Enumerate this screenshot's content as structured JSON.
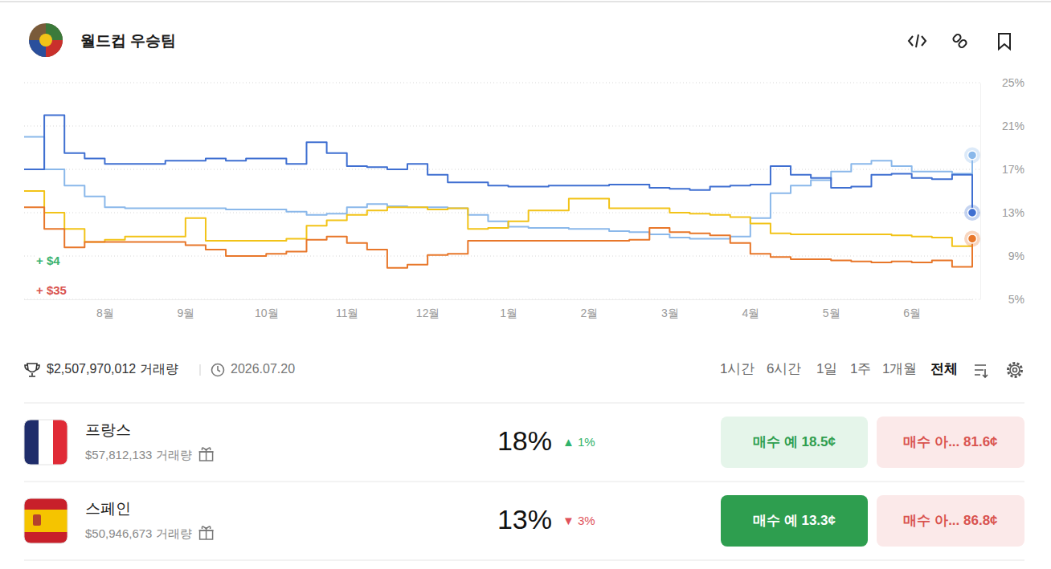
{
  "chart_data": {
    "type": "line",
    "title": "월드컵 우승팀",
    "line_style": "step",
    "grid": true,
    "categories": [
      null,
      null,
      null,
      null,
      "8월",
      null,
      null,
      null,
      "9월",
      null,
      null,
      null,
      "10월",
      null,
      null,
      null,
      "11월",
      null,
      null,
      null,
      "12월",
      null,
      null,
      null,
      "1월",
      null,
      null,
      null,
      "2월",
      null,
      null,
      null,
      "3월",
      null,
      null,
      null,
      "4월",
      null,
      null,
      null,
      "5월",
      null,
      null,
      null,
      "6월",
      null,
      null,
      null
    ],
    "series": [
      {
        "name": "프랑스",
        "color": "#8ab8ea",
        "marker": "dot",
        "values": [
          20,
          17,
          15.5,
          14.5,
          13.5,
          13.4,
          13.4,
          13.4,
          13.4,
          13.4,
          13.3,
          13.3,
          13.3,
          13.1,
          12.8,
          12.9,
          13.5,
          13.8,
          13.6,
          13.5,
          13.5,
          13.4,
          12.8,
          12.2,
          11.7,
          11.6,
          11.6,
          11.5,
          11.5,
          11.3,
          11.2,
          11,
          10.7,
          10.6,
          10.6,
          10.8,
          12.5,
          14.8,
          15.5,
          16,
          16.8,
          17.5,
          17.8,
          17.3,
          16.8,
          16.8,
          16.6,
          18.3
        ]
      },
      {
        "name": "스페인",
        "color": "#3f6fd1",
        "marker": "dot",
        "values": [
          17,
          22,
          18.5,
          18,
          17.5,
          17.5,
          17.5,
          17.8,
          17.8,
          18,
          17.8,
          18,
          18,
          17.5,
          19.5,
          18.5,
          17.3,
          17.2,
          17,
          17.5,
          16.5,
          15.8,
          15.8,
          15.5,
          15.4,
          15.4,
          15.5,
          15.5,
          15.5,
          15.6,
          15.6,
          15.3,
          15.2,
          15.1,
          15.4,
          15.5,
          15.6,
          17.3,
          16.5,
          16.2,
          15.3,
          15.4,
          16.5,
          16.6,
          16.2,
          16.1,
          16.5,
          13
        ]
      },
      {
        "color": "#f2c318",
        "marker": "none",
        "values": [
          15,
          13,
          11.5,
          10.3,
          10.5,
          10.8,
          10.8,
          10.8,
          12.5,
          10.4,
          10.4,
          10.4,
          10.4,
          10.6,
          11.8,
          12.3,
          12.8,
          13.2,
          13.5,
          13.5,
          13.3,
          13.4,
          11.5,
          11.6,
          12.2,
          13.2,
          13.2,
          14.3,
          14.3,
          13.4,
          13.4,
          13.4,
          13,
          12.9,
          12.8,
          12.6,
          12,
          11.1,
          11,
          11,
          11,
          11,
          11,
          10.9,
          10.8,
          10.7,
          9.9,
          9.6
        ]
      },
      {
        "color": "#e8772a",
        "marker": "dot",
        "values": [
          13.5,
          11.5,
          9.8,
          10.3,
          10.3,
          10.3,
          10.3,
          10.3,
          10,
          9.6,
          9,
          9,
          9.2,
          9.4,
          10.5,
          10.8,
          10.2,
          9.6,
          7.9,
          8.2,
          9.1,
          9.2,
          10.4,
          10.4,
          10.4,
          10.4,
          10.4,
          10.4,
          10.4,
          10.4,
          10.5,
          11.6,
          11.2,
          11.1,
          10.9,
          10.2,
          9.2,
          8.9,
          8.7,
          8.7,
          8.6,
          8.5,
          8.4,
          8.5,
          8.4,
          8.6,
          8,
          10.6
        ]
      }
    ],
    "ylim": [
      5,
      25
    ],
    "yticks": [
      {
        "value": 5,
        "label": "5%"
      },
      {
        "value": 9,
        "label": "9%"
      },
      {
        "value": 13,
        "label": "13%"
      },
      {
        "value": 17,
        "label": "17%"
      },
      {
        "value": 21,
        "label": "21%"
      },
      {
        "value": 25,
        "label": "25%"
      }
    ],
    "annotations": [
      "+ $4",
      "+ $35"
    ]
  },
  "footer": {
    "volume": "$2,507,970,012 거래량",
    "date": "2026.07.20",
    "ranges": [
      "1시간",
      "6시간",
      "1일",
      "1주",
      "1개월",
      "전체"
    ]
  },
  "outcomes": [
    {
      "volume": "$57,812,133 거래량",
      "probability": "18%",
      "change": "▲ 1%",
      "buy_yes": "매수 예 18.5¢",
      "buy_no": "매수 아... 81.6¢"
    },
    {
      "volume": "$50,946,673 거래량",
      "probability": "13%",
      "change": "▼ 3%",
      "buy_yes": "매수 예 13.3¢",
      "buy_no": "매수 아... 86.8¢"
    }
  ]
}
